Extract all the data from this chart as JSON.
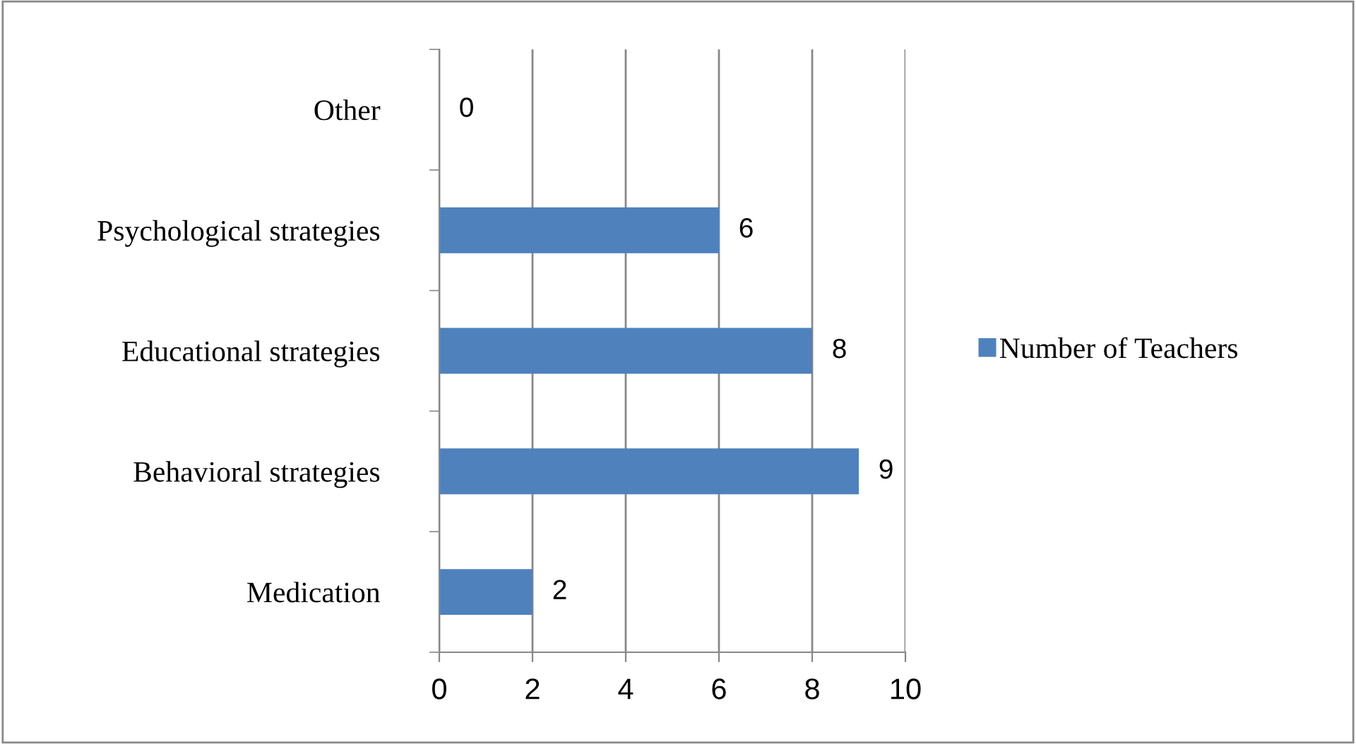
{
  "chart_data": {
    "type": "bar",
    "orientation": "horizontal",
    "categories": [
      "Other",
      "Psychological strategies",
      "Educational strategies",
      "Behavioral strategies",
      "Medication"
    ],
    "series": [
      {
        "name": "Number of Teachers",
        "color": "#4f81bd",
        "values": [
          0,
          6,
          8,
          9,
          2
        ]
      }
    ],
    "xlim": [
      0,
      10
    ],
    "xticks": [
      0,
      2,
      4,
      6,
      8,
      10
    ],
    "grid": "x",
    "legend": "right",
    "data_labels": true
  }
}
